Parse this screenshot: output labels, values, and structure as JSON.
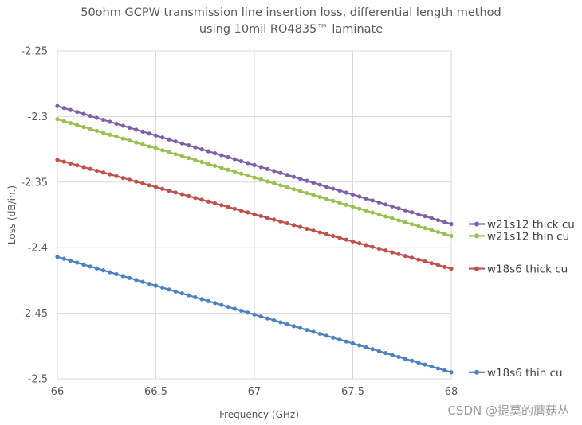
{
  "chart_data": {
    "type": "line",
    "title": "50ohm GCPW transmission line insertion loss, differential length method",
    "subtitle": "using 10mil RO4835™ laminate",
    "xlabel": "Frequency (GHz)",
    "ylabel": "Loss (dB/in.)",
    "xlim": [
      66,
      68
    ],
    "ylim": [
      -2.5,
      -2.25
    ],
    "xticks": [
      66,
      66.5,
      67,
      67.5,
      68
    ],
    "xtick_labels": [
      "66",
      "66.5",
      "67",
      "67.5",
      "68"
    ],
    "yticks": [
      -2.25,
      -2.3,
      -2.35,
      -2.4,
      -2.45,
      -2.5
    ],
    "ytick_labels": [
      "-2.25",
      "-2.3",
      "-2.35",
      "-2.4",
      "-2.45",
      "-2.5"
    ],
    "grid": true,
    "legend_position": "right",
    "points_per_series": 61,
    "series": [
      {
        "name": "w21s12 thick cu",
        "color": "#7f5fa7",
        "x": [
          66,
          68
        ],
        "y": [
          -2.292,
          -2.382
        ]
      },
      {
        "name": "w21s12 thin cu",
        "color": "#9ac04f",
        "x": [
          66,
          68
        ],
        "y": [
          -2.302,
          -2.391
        ]
      },
      {
        "name": "w18s6 thick cu",
        "color": "#c0504d",
        "x": [
          66,
          68
        ],
        "y": [
          -2.333,
          -2.416
        ]
      },
      {
        "name": "w18s6 thin cu",
        "color": "#4f81bd",
        "x": [
          66,
          68
        ],
        "y": [
          -2.407,
          -2.495
        ]
      }
    ]
  },
  "watermark": "CSDN @提莫的蘑菇丛"
}
